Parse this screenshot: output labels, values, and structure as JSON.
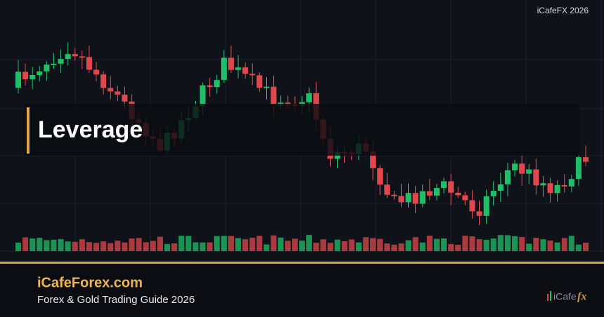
{
  "header": {
    "brand_tag": "iCafeFX 2026"
  },
  "banner": {
    "title": "Leverage"
  },
  "footer": {
    "site": "iCafeForex.com",
    "subtitle": "Forex & Gold Trading Guide 2026",
    "logo_text": "iCafe",
    "logo_mark": "fx"
  }
}
